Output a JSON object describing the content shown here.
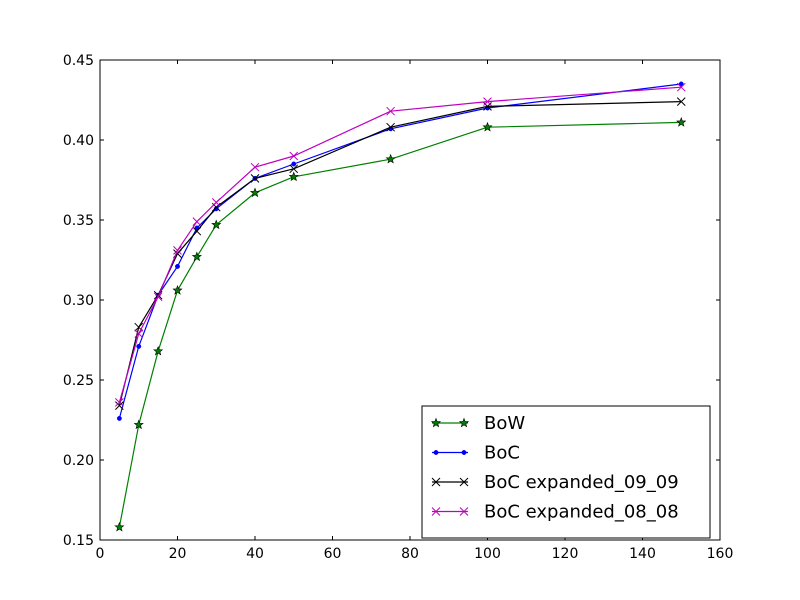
{
  "chart_data": {
    "type": "line",
    "title": "",
    "xlabel": "",
    "ylabel": "",
    "xlim": [
      0,
      160
    ],
    "ylim": [
      0.15,
      0.45
    ],
    "x_ticks": [
      0,
      20,
      40,
      60,
      80,
      100,
      120,
      140,
      160
    ],
    "x_tick_labels": [
      "0",
      "20",
      "40",
      "60",
      "80",
      "100",
      "120",
      "140",
      "160"
    ],
    "y_ticks": [
      0.15,
      0.2,
      0.25,
      0.3,
      0.35,
      0.4,
      0.45
    ],
    "y_tick_labels": [
      "0.15",
      "0.20",
      "0.25",
      "0.30",
      "0.35",
      "0.40",
      "0.45"
    ],
    "grid": false,
    "legend_position": "lower-right",
    "series": [
      {
        "name": "BoW",
        "color": "#008000",
        "marker": "star",
        "x": [
          5,
          10,
          15,
          20,
          25,
          30,
          40,
          50,
          75,
          100,
          150
        ],
        "y": [
          0.158,
          0.222,
          0.268,
          0.306,
          0.327,
          0.347,
          0.367,
          0.377,
          0.388,
          0.408,
          0.411
        ]
      },
      {
        "name": "BoC",
        "color": "#0000ff",
        "marker": "dot",
        "x": [
          5,
          10,
          15,
          20,
          25,
          30,
          40,
          50,
          75,
          100,
          150
        ],
        "y": [
          0.226,
          0.271,
          0.303,
          0.321,
          0.345,
          0.357,
          0.376,
          0.385,
          0.407,
          0.42,
          0.435
        ]
      },
      {
        "name": "BoC expanded_09_09",
        "color": "#000000",
        "marker": "x",
        "x": [
          5,
          10,
          15,
          20,
          25,
          30,
          40,
          50,
          75,
          100,
          150
        ],
        "y": [
          0.234,
          0.283,
          0.303,
          0.329,
          0.343,
          0.358,
          0.376,
          0.382,
          0.408,
          0.421,
          0.424
        ]
      },
      {
        "name": "BoC expanded_08_08",
        "color": "#bf00bf",
        "marker": "x",
        "x": [
          5,
          10,
          15,
          20,
          25,
          30,
          40,
          50,
          75,
          100,
          150
        ],
        "y": [
          0.236,
          0.279,
          0.302,
          0.331,
          0.349,
          0.361,
          0.383,
          0.39,
          0.418,
          0.424,
          0.433
        ]
      }
    ]
  }
}
